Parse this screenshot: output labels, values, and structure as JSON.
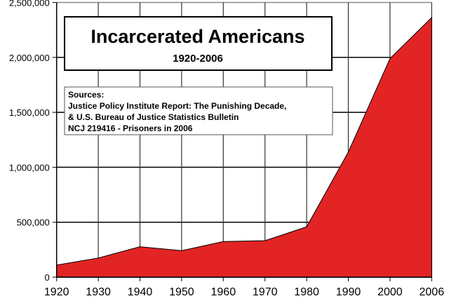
{
  "chart_data": {
    "type": "area",
    "title": "Incarcerated Americans",
    "subtitle": "1920-2006",
    "sources": [
      "Sources:",
      "Justice Policy Institute Report: The Punishing Decade,",
      "& U.S. Bureau of Justice Statistics Bulletin",
      "NCJ 219416 - Prisoners in 2006"
    ],
    "categories": [
      "1920",
      "1930",
      "1940",
      "1950",
      "1960",
      "1970",
      "1980",
      "1990",
      "2000",
      "2006"
    ],
    "values": [
      110000,
      174000,
      277000,
      241000,
      324000,
      332000,
      458000,
      1139000,
      1990000,
      2363000
    ],
    "y_ticks": [
      0,
      500000,
      1000000,
      1500000,
      2000000,
      2500000
    ],
    "y_tick_labels": [
      "0",
      "500,000",
      "1,000,000",
      "1,500,000",
      "2,000,000",
      "2,500,000"
    ],
    "ylim": [
      0,
      2500000
    ],
    "xlabel": "",
    "ylabel": "",
    "grid": true,
    "fill_color": "#e32424"
  }
}
